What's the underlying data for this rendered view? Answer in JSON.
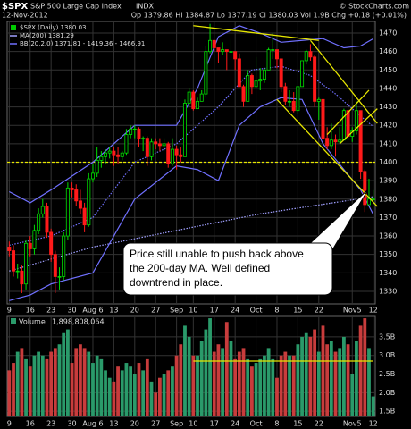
{
  "chart_data": [
    {
      "type": "candlestick",
      "symbol": "$SPX",
      "name": "S&P 500 Large Cap Index",
      "exchange": "INDX",
      "credit": "© StockCharts.com",
      "date": "12-Nov-2012",
      "quote": "Op 1379.86 Hi 1384.87 Lo 1377.19 Cl 1380.03 Vol 1.9B Chg +0.18 (+0.01%)",
      "legend": [
        {
          "label": "$SPX (Daily) 1380.03",
          "color": "#00cc00"
        },
        {
          "label": "MA(200) 1381.29",
          "color": "#a0a0ff"
        },
        {
          "label": "BB(20,2.0) 1371.81 - 1419.36 - 1466.91",
          "color": "#7070ff"
        }
      ],
      "up_color": "#00dd00",
      "down_color": "#ff1a1a",
      "open": [
        1354,
        1352,
        1341,
        1341,
        1334,
        1356,
        1353,
        1363,
        1372,
        1376,
        1362,
        1350,
        1338,
        1338,
        1360,
        1386,
        1385,
        1379,
        1375,
        1366,
        1391,
        1394,
        1401,
        1403,
        1405,
        1406,
        1404,
        1403,
        1405,
        1415,
        1418,
        1418,
        1413,
        1413,
        1403,
        1411,
        1410,
        1409,
        1410,
        1399,
        1407,
        1404,
        1403,
        1432,
        1438,
        1429,
        1433,
        1437,
        1460,
        1466,
        1462,
        1460,
        1461,
        1460,
        1460,
        1456,
        1441,
        1433,
        1447,
        1441,
        1444,
        1445,
        1450,
        1461,
        1461,
        1456,
        1441,
        1433,
        1433,
        1428,
        1441,
        1455,
        1460,
        1457,
        1433,
        1434,
        1413,
        1409,
        1412,
        1411,
        1412,
        1428,
        1414,
        1417,
        1428,
        1395,
        1377,
        1379.86
      ],
      "high": [
        1357,
        1355,
        1345,
        1344,
        1358,
        1360,
        1366,
        1375,
        1380,
        1378,
        1364,
        1352,
        1343,
        1362,
        1389,
        1389,
        1388,
        1385,
        1378,
        1394,
        1399,
        1408,
        1406,
        1407,
        1408,
        1408,
        1408,
        1406,
        1418,
        1420,
        1420,
        1419,
        1414,
        1414,
        1413,
        1413,
        1413,
        1413,
        1411,
        1413,
        1409,
        1408,
        1434,
        1440,
        1439,
        1435,
        1439,
        1463,
        1475,
        1466,
        1462,
        1465,
        1461,
        1467,
        1460,
        1459,
        1442,
        1450,
        1448,
        1457,
        1451,
        1451,
        1462,
        1470,
        1461,
        1456,
        1443,
        1439,
        1438,
        1441,
        1455,
        1461,
        1464,
        1458,
        1435,
        1434,
        1419,
        1421,
        1415,
        1419,
        1429,
        1434,
        1419,
        1433,
        1428,
        1396,
        1391,
        1384.87
      ],
      "low": [
        1349,
        1338,
        1337,
        1329,
        1331,
        1349,
        1350,
        1361,
        1370,
        1359,
        1346,
        1329,
        1331,
        1336,
        1358,
        1381,
        1376,
        1372,
        1362,
        1365,
        1389,
        1392,
        1397,
        1399,
        1402,
        1398,
        1399,
        1401,
        1404,
        1413,
        1413,
        1408,
        1406,
        1398,
        1401,
        1407,
        1406,
        1406,
        1397,
        1398,
        1396,
        1400,
        1403,
        1430,
        1428,
        1429,
        1433,
        1435,
        1459,
        1460,
        1454,
        1458,
        1450,
        1459,
        1450,
        1441,
        1430,
        1433,
        1437,
        1440,
        1439,
        1443,
        1450,
        1456,
        1451,
        1438,
        1431,
        1430,
        1427,
        1426,
        1441,
        1453,
        1455,
        1430,
        1423,
        1409,
        1407,
        1407,
        1403,
        1410,
        1412,
        1412,
        1411,
        1415,
        1391,
        1373,
        1377,
        1377.19
      ],
      "close": [
        1352,
        1341,
        1341,
        1334,
        1356,
        1353,
        1363,
        1372,
        1376,
        1362,
        1350,
        1338,
        1338,
        1360,
        1386,
        1385,
        1379,
        1375,
        1366,
        1391,
        1394,
        1401,
        1403,
        1405,
        1406,
        1404,
        1403,
        1405,
        1415,
        1418,
        1418,
        1413,
        1413,
        1403,
        1411,
        1410,
        1409,
        1410,
        1399,
        1407,
        1404,
        1403,
        1432,
        1438,
        1429,
        1433,
        1437,
        1460,
        1466,
        1462,
        1460,
        1461,
        1460,
        1460,
        1456,
        1441,
        1433,
        1447,
        1441,
        1444,
        1445,
        1450,
        1461,
        1461,
        1456,
        1441,
        1433,
        1433,
        1428,
        1441,
        1455,
        1460,
        1457,
        1433,
        1434,
        1413,
        1409,
        1412,
        1411,
        1412,
        1428,
        1414,
        1417,
        1428,
        1395,
        1377,
        1380,
        1380.03
      ],
      "overlays": [
        {
          "color": "#a0a0ff",
          "dash": true,
          "x": [
            0,
            20,
            40,
            60,
            87
          ],
          "values": [
            1341,
            1354,
            1363,
            1372,
            1381.29
          ]
        },
        {
          "color": "#7070ff",
          "dash": false,
          "x": [
            0,
            5,
            10,
            20,
            30,
            40,
            45,
            50,
            55,
            60,
            65,
            70,
            75,
            80,
            84,
            87
          ],
          "values": [
            1384,
            1378,
            1385,
            1400,
            1420,
            1420,
            1440,
            1468,
            1474,
            1470,
            1465,
            1466,
            1467,
            1462,
            1463,
            1466.91
          ]
        },
        {
          "color": "#7070ff",
          "dash": true,
          "x": [
            0,
            10,
            20,
            30,
            40,
            50,
            58,
            65,
            72,
            78,
            84,
            87
          ],
          "values": [
            1355,
            1360,
            1370,
            1400,
            1410,
            1430,
            1450,
            1452,
            1447,
            1437,
            1425,
            1419.36
          ]
        },
        {
          "color": "#7070ff",
          "dash": false,
          "x": [
            0,
            5,
            10,
            20,
            30,
            40,
            45,
            50,
            55,
            60,
            65,
            70,
            75,
            80,
            84,
            87
          ],
          "values": [
            1325,
            1328,
            1334,
            1340,
            1380,
            1398,
            1396,
            1390,
            1420,
            1430,
            1435,
            1434,
            1410,
            1396,
            1385,
            1371.81
          ]
        }
      ],
      "trendlines": [
        {
          "x": [
            44,
            74
          ],
          "values": [
            1474,
            1466
          ]
        },
        {
          "x": [
            72,
            88
          ],
          "values": [
            1466,
            1421
          ]
        },
        {
          "x": [
            64,
            88
          ],
          "values": [
            1434,
            1376
          ]
        },
        {
          "x": [
            76,
            86
          ],
          "values": [
            1415,
            1439
          ]
        },
        {
          "x": [
            79,
            88
          ],
          "values": [
            1410,
            1429
          ]
        }
      ],
      "trendline_color": "#e6e600",
      "reference_line": {
        "value": 1400,
        "color": "#e6e600"
      },
      "annotation": [
        "Price still unable to push back above",
        "the 200-day MA. Well defined",
        "downtrend in place."
      ],
      "xlim": [
        -0.5,
        87.5
      ],
      "xticks": [
        {
          "value": 0,
          "label": "9"
        },
        {
          "value": 5,
          "label": "16"
        },
        {
          "value": 10,
          "label": "23"
        },
        {
          "value": 15,
          "label": "30"
        },
        {
          "value": 20,
          "label": "Aug 6"
        },
        {
          "value": 25,
          "label": "13"
        },
        {
          "value": 30,
          "label": "20"
        },
        {
          "value": 35,
          "label": "27"
        },
        {
          "value": 40,
          "label": "Sep"
        },
        {
          "value": 44,
          "label": "10"
        },
        {
          "value": 49,
          "label": "17"
        },
        {
          "value": 54,
          "label": "24"
        },
        {
          "value": 59,
          "label": "Oct"
        },
        {
          "value": 64,
          "label": "8"
        },
        {
          "value": 69,
          "label": "15"
        },
        {
          "value": 74,
          "label": "22"
        },
        {
          "value": 82,
          "label": "Nov5"
        },
        {
          "value": 87,
          "label": "12"
        }
      ],
      "ylim": [
        1323.2,
        1476.3
      ],
      "yticks": [
        1330,
        1340,
        1350,
        1360,
        1370,
        1380,
        1390,
        1400,
        1410,
        1420,
        1430,
        1440,
        1450,
        1460,
        1470
      ],
      "grid": true
    },
    {
      "type": "bar",
      "title": "Volume",
      "value_label": "1,898,808,064",
      "up_color": "#2a9a6a",
      "down_color": "#c83c3c",
      "values": [
        2.6,
        2.8,
        3.1,
        3.2,
        2.9,
        2.7,
        3.0,
        3.1,
        3.0,
        2.9,
        3.1,
        3.2,
        3.3,
        3.6,
        3.7,
        2.8,
        3.2,
        3.3,
        3.2,
        3.1,
        2.8,
        3.0,
        2.9,
        2.6,
        2.4,
        2.3,
        2.7,
        2.6,
        2.8,
        2.7,
        2.5,
        2.8,
        2.6,
        2.9,
        2.3,
        2.0,
        2.4,
        2.5,
        2.6,
        2.7,
        3.0,
        3.3,
        3.8,
        3.5,
        3.0,
        3.0,
        3.4,
        3.7,
        4.0,
        3.1,
        3.3,
        3.2,
        3.9,
        3.4,
        2.9,
        3.1,
        3.2,
        2.9,
        2.7,
        2.8,
        2.9,
        3.0,
        3.2,
        2.9,
        2.4,
        3.0,
        3.1,
        3.0,
        3.0,
        3.3,
        3.5,
        3.6,
        3.5,
        3.7,
        3.1,
        3.8,
        3.3,
        3.4,
        3.1,
        3.2,
        3.5,
        3.3,
        2.5,
        3.4,
        3.8,
        4.0,
        3.2,
        1.898808064
      ],
      "trendline": {
        "x": [
          44,
          87
        ],
        "values": [
          2.85,
          2.85
        ],
        "color": "#e6e600"
      },
      "ylim": [
        1.36,
        4.05
      ],
      "yticks": [
        {
          "value": 1.5,
          "label": "1.5B"
        },
        {
          "value": 2.0,
          "label": "2.0B"
        },
        {
          "value": 2.5,
          "label": "2.5B"
        },
        {
          "value": 3.0,
          "label": "3.0B"
        },
        {
          "value": 3.5,
          "label": "3.5B"
        }
      ],
      "grid": true
    }
  ]
}
